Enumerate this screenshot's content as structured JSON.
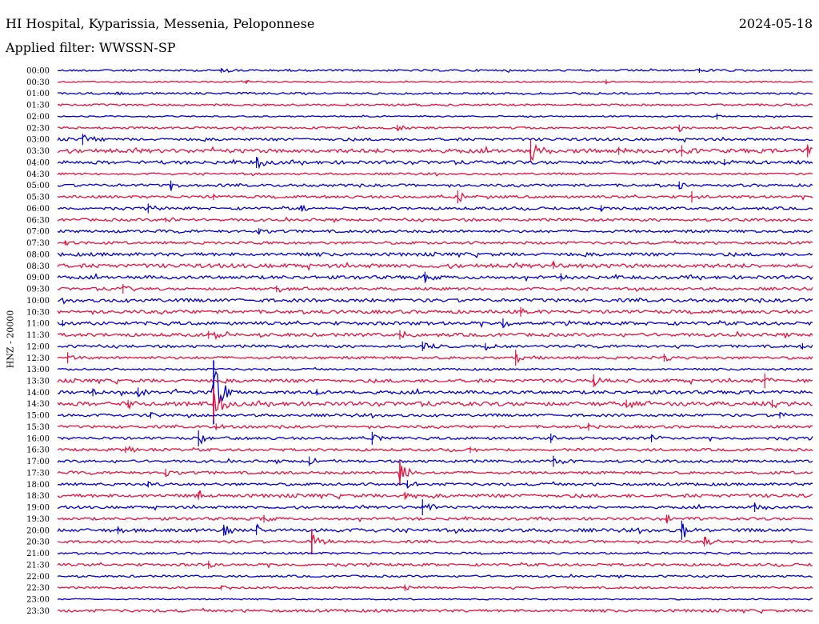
{
  "header": {
    "station": "HI Hospital, Kyparissia, Messenia, Peloponnese",
    "date": "2024-05-18",
    "filter": "Applied filter: WWSSN-SP"
  },
  "chart_data": {
    "type": "line",
    "ylabel": "HNZ - 20000",
    "row_labels": [
      "00:00",
      "00:30",
      "01:00",
      "01:30",
      "02:00",
      "02:30",
      "03:00",
      "03:30",
      "04:00",
      "04:30",
      "05:00",
      "05:30",
      "06:00",
      "06:30",
      "07:00",
      "07:30",
      "08:00",
      "08:30",
      "09:00",
      "09:30",
      "10:00",
      "10:30",
      "11:00",
      "11:30",
      "12:00",
      "12:30",
      "13:00",
      "13:30",
      "14:00",
      "14:30",
      "15:00",
      "15:30",
      "16:00",
      "16:30",
      "17:00",
      "17:30",
      "18:00",
      "18:30",
      "19:00",
      "19:30",
      "20:00",
      "20:30",
      "21:00",
      "21:30",
      "22:00",
      "22:30",
      "23:00",
      "23:30"
    ],
    "row_minutes": 30,
    "series_colors": [
      "#0000cc",
      "#e8103c"
    ],
    "noise_level": [
      1.5,
      1,
      1.5,
      1.5,
      1,
      1.5,
      2,
      3,
      2.5,
      1.5,
      2,
      2,
      2,
      2,
      2,
      2,
      2.5,
      3,
      2.5,
      2,
      2.5,
      2.5,
      2.5,
      2.5,
      2,
      2,
      1.5,
      2.5,
      2.5,
      3,
      2,
      2,
      2,
      2,
      2,
      2,
      2,
      2.5,
      2,
      2,
      2.5,
      2,
      1.5,
      2,
      1.5,
      1.5,
      1,
      2
    ],
    "events": [
      {
        "row": 0,
        "minute": 6.5,
        "amplitude": 3
      },
      {
        "row": 0,
        "minute": 25.5,
        "amplitude": 3
      },
      {
        "row": 1,
        "minute": 7.5,
        "amplitude": 2
      },
      {
        "row": 1,
        "minute": 21.8,
        "amplitude": 3
      },
      {
        "row": 2,
        "minute": 2.4,
        "amplitude": 2
      },
      {
        "row": 4,
        "minute": 26.2,
        "amplitude": 4
      },
      {
        "row": 5,
        "minute": 13.5,
        "amplitude": 4
      },
      {
        "row": 5,
        "minute": 24.7,
        "amplitude": 4
      },
      {
        "row": 6,
        "minute": 1.0,
        "amplitude": 7
      },
      {
        "row": 7,
        "minute": 18.8,
        "amplitude": 14
      },
      {
        "row": 7,
        "minute": 22.3,
        "amplitude": 5
      },
      {
        "row": 7,
        "minute": 24.8,
        "amplitude": 7
      },
      {
        "row": 7,
        "minute": 29.8,
        "amplitude": 8
      },
      {
        "row": 8,
        "minute": 7.9,
        "amplitude": 7
      },
      {
        "row": 8,
        "minute": 26.5,
        "amplitude": 4
      },
      {
        "row": 10,
        "minute": 4.5,
        "amplitude": 6
      },
      {
        "row": 10,
        "minute": 24.7,
        "amplitude": 5
      },
      {
        "row": 11,
        "minute": 6.2,
        "amplitude": 4
      },
      {
        "row": 11,
        "minute": 15.9,
        "amplitude": 8
      },
      {
        "row": 11,
        "minute": 25.2,
        "amplitude": 7
      },
      {
        "row": 12,
        "minute": 3.6,
        "amplitude": 6
      },
      {
        "row": 12,
        "minute": 9.7,
        "amplitude": 4
      },
      {
        "row": 12,
        "minute": 21.6,
        "amplitude": 4
      },
      {
        "row": 13,
        "minute": 4.3,
        "amplitude": 3
      },
      {
        "row": 14,
        "minute": 8.0,
        "amplitude": 4
      },
      {
        "row": 15,
        "minute": 0.3,
        "amplitude": 3
      },
      {
        "row": 17,
        "minute": 19.7,
        "amplitude": 4
      },
      {
        "row": 18,
        "minute": 14.6,
        "amplitude": 7
      },
      {
        "row": 18,
        "minute": 20.0,
        "amplitude": 5
      },
      {
        "row": 19,
        "minute": 2.6,
        "amplitude": 6
      },
      {
        "row": 19,
        "minute": 8.7,
        "amplitude": 4
      },
      {
        "row": 21,
        "minute": 18.4,
        "amplitude": 6
      },
      {
        "row": 22,
        "minute": 0.2,
        "amplitude": 4
      },
      {
        "row": 22,
        "minute": 17.7,
        "amplitude": 6
      },
      {
        "row": 23,
        "minute": 6.0,
        "amplitude": 5
      },
      {
        "row": 23,
        "minute": 13.6,
        "amplitude": 6
      },
      {
        "row": 24,
        "minute": 14.5,
        "amplitude": 6
      },
      {
        "row": 24,
        "minute": 17.0,
        "amplitude": 4
      },
      {
        "row": 24,
        "minute": 29.6,
        "amplitude": 4
      },
      {
        "row": 25,
        "minute": 0.4,
        "amplitude": 7
      },
      {
        "row": 25,
        "minute": 18.2,
        "amplitude": 10
      },
      {
        "row": 25,
        "minute": 24.1,
        "amplitude": 5
      },
      {
        "row": 27,
        "minute": 21.3,
        "amplitude": 8
      },
      {
        "row": 27,
        "minute": 28.1,
        "amplitude": 9
      },
      {
        "row": 28,
        "minute": 1.4,
        "amplitude": 5
      },
      {
        "row": 28,
        "minute": 3.2,
        "amplitude": 6
      },
      {
        "row": 28,
        "minute": 6.2,
        "amplitude": 40
      },
      {
        "row": 28,
        "minute": 10.3,
        "amplitude": 4
      },
      {
        "row": 29,
        "minute": 2.8,
        "amplitude": 5
      },
      {
        "row": 29,
        "minute": 6.2,
        "amplitude": 20
      },
      {
        "row": 29,
        "minute": 22.6,
        "amplitude": 5
      },
      {
        "row": 29,
        "minute": 28.4,
        "amplitude": 5
      },
      {
        "row": 30,
        "minute": 3.7,
        "amplitude": 4
      },
      {
        "row": 30,
        "minute": 28.7,
        "amplitude": 4
      },
      {
        "row": 31,
        "minute": 6.3,
        "amplitude": 4
      },
      {
        "row": 31,
        "minute": 21.1,
        "amplitude": 5
      },
      {
        "row": 32,
        "minute": 5.6,
        "amplitude": 10
      },
      {
        "row": 32,
        "minute": 12.5,
        "amplitude": 8
      },
      {
        "row": 32,
        "minute": 19.6,
        "amplitude": 6
      },
      {
        "row": 32,
        "minute": 23.6,
        "amplitude": 5
      },
      {
        "row": 33,
        "minute": 2.7,
        "amplitude": 4
      },
      {
        "row": 33,
        "minute": 16.4,
        "amplitude": 4
      },
      {
        "row": 34,
        "minute": 10.0,
        "amplitude": 6
      },
      {
        "row": 34,
        "minute": 19.7,
        "amplitude": 7
      },
      {
        "row": 35,
        "minute": 4.3,
        "amplitude": 5
      },
      {
        "row": 35,
        "minute": 13.6,
        "amplitude": 16
      },
      {
        "row": 36,
        "minute": 3.6,
        "amplitude": 4
      },
      {
        "row": 36,
        "minute": 13.9,
        "amplitude": 5
      },
      {
        "row": 37,
        "minute": 5.6,
        "amplitude": 5
      },
      {
        "row": 37,
        "minute": 13.8,
        "amplitude": 5
      },
      {
        "row": 38,
        "minute": 14.5,
        "amplitude": 10
      },
      {
        "row": 38,
        "minute": 27.7,
        "amplitude": 6
      },
      {
        "row": 39,
        "minute": 8.2,
        "amplitude": 5
      },
      {
        "row": 39,
        "minute": 24.2,
        "amplitude": 5
      },
      {
        "row": 40,
        "minute": 2.4,
        "amplitude": 5
      },
      {
        "row": 40,
        "minute": 6.6,
        "amplitude": 7
      },
      {
        "row": 40,
        "minute": 7.9,
        "amplitude": 6
      },
      {
        "row": 40,
        "minute": 24.8,
        "amplitude": 12
      },
      {
        "row": 41,
        "minute": 10.1,
        "amplitude": 16
      },
      {
        "row": 41,
        "minute": 25.7,
        "amplitude": 6
      },
      {
        "row": 43,
        "minute": 6.0,
        "amplitude": 5
      },
      {
        "row": 45,
        "minute": 6.5,
        "amplitude": 3
      },
      {
        "row": 45,
        "minute": 13.8,
        "amplitude": 4
      }
    ]
  }
}
